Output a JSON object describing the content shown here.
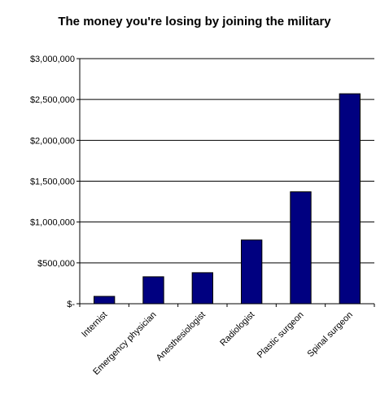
{
  "chart_data": {
    "type": "bar",
    "title": "The money you're losing by joining the military",
    "xlabel": "",
    "ylabel": "",
    "categories": [
      "Internist",
      "Emergency physician",
      "Anesthesiologist",
      "Radiologist",
      "Plastic surgeon",
      "Spinal surgeon"
    ],
    "values": [
      90000,
      330000,
      380000,
      780000,
      1370000,
      2570000
    ],
    "ylim": [
      0,
      3000000
    ],
    "y_ticks": [
      0,
      500000,
      1000000,
      1500000,
      2000000,
      2500000,
      3000000
    ],
    "y_tick_labels": [
      "$-",
      "$500,000",
      "$1,000,000",
      "$1,500,000",
      "$2,000,000",
      "$2,500,000",
      "$3,000,000"
    ],
    "grid": true,
    "legend": "none",
    "bar_color": "#000080"
  }
}
